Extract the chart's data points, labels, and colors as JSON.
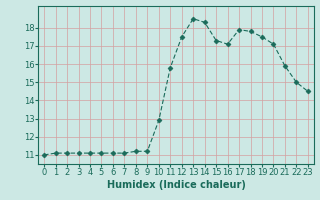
{
  "x": [
    0,
    1,
    2,
    3,
    4,
    5,
    6,
    7,
    8,
    9,
    10,
    11,
    12,
    13,
    14,
    15,
    16,
    17,
    18,
    19,
    20,
    21,
    22,
    23
  ],
  "y": [
    11.0,
    11.1,
    11.1,
    11.1,
    11.1,
    11.1,
    11.1,
    11.1,
    11.2,
    11.2,
    12.9,
    15.8,
    17.5,
    18.5,
    18.3,
    17.3,
    17.1,
    17.9,
    17.8,
    17.5,
    17.1,
    15.9,
    15.0,
    14.5
  ],
  "line_color": "#1a6b5a",
  "marker": "D",
  "marker_size": 2.5,
  "bg_color": "#cce8e4",
  "grid_color_major": "#d4a0a0",
  "grid_color_minor": "#cce8e4",
  "xlabel": "Humidex (Indice chaleur)",
  "xlim": [
    -0.5,
    23.5
  ],
  "ylim": [
    10.5,
    19.2
  ],
  "yticks": [
    11,
    12,
    13,
    14,
    15,
    16,
    17,
    18
  ],
  "xticks": [
    0,
    1,
    2,
    3,
    4,
    5,
    6,
    7,
    8,
    9,
    10,
    11,
    12,
    13,
    14,
    15,
    16,
    17,
    18,
    19,
    20,
    21,
    22,
    23
  ],
  "font_size_label": 7,
  "font_size_tick": 6
}
